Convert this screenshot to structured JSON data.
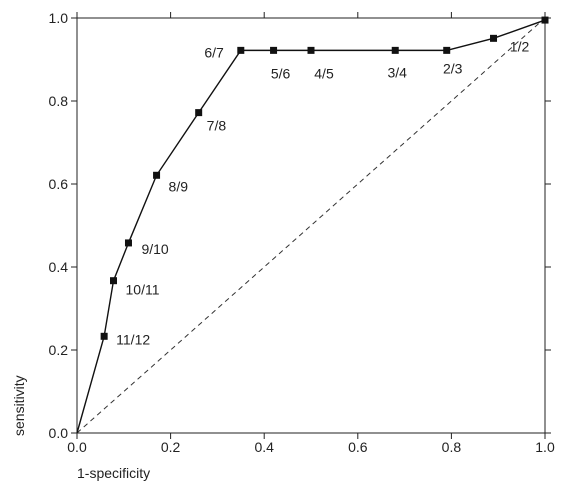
{
  "chart_data": {
    "type": "line",
    "xlabel": "1-specificity",
    "ylabel": "sensitivity",
    "xlim": [
      0,
      1
    ],
    "ylim": [
      0,
      1
    ],
    "x_ticks": [
      "0.0",
      "0.2",
      "0.4",
      "0.6",
      "0.8",
      "1.0"
    ],
    "y_ticks": [
      "0.0",
      "0.2",
      "0.4",
      "0.6",
      "0.8",
      "1.0"
    ],
    "grid": false,
    "reference_line": "diagonal",
    "series": [
      {
        "points": [
          {
            "x": 0.0,
            "y": 0.0,
            "label": ""
          },
          {
            "x": 0.058,
            "y": 0.233,
            "label": "11/12"
          },
          {
            "x": 0.078,
            "y": 0.367,
            "label": "10/11"
          },
          {
            "x": 0.11,
            "y": 0.458,
            "label": "9/10"
          },
          {
            "x": 0.17,
            "y": 0.621,
            "label": "8/9"
          },
          {
            "x": 0.26,
            "y": 0.772,
            "label": "7/8"
          },
          {
            "x": 0.35,
            "y": 0.922,
            "label": "6/7"
          },
          {
            "x": 0.42,
            "y": 0.922,
            "label": "5/6"
          },
          {
            "x": 0.5,
            "y": 0.922,
            "label": "4/5"
          },
          {
            "x": 0.68,
            "y": 0.922,
            "label": "3/4"
          },
          {
            "x": 0.79,
            "y": 0.922,
            "label": "2/3"
          },
          {
            "x": 0.89,
            "y": 0.951,
            "label": "1/2"
          },
          {
            "x": 1.0,
            "y": 0.995,
            "label": ""
          }
        ]
      }
    ],
    "colors": {
      "line": "#111111",
      "marker": "#111111",
      "axis": "#222222"
    }
  }
}
